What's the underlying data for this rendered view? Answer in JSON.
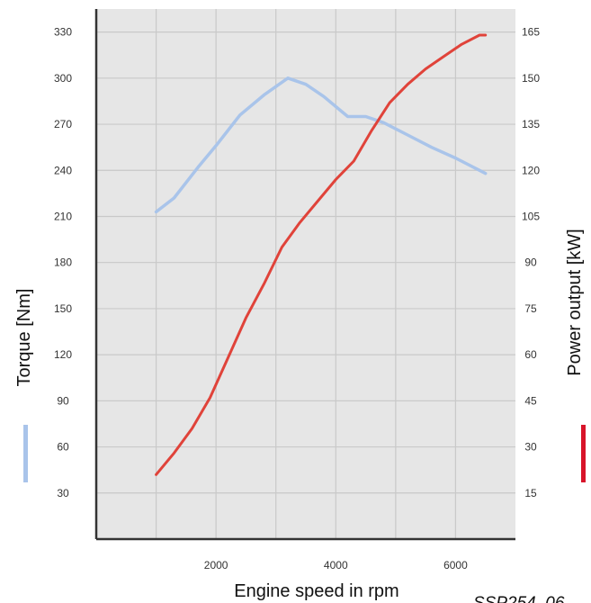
{
  "chart_data": {
    "type": "line",
    "title": "",
    "xlabel": "Engine speed in rpm",
    "ylabel_left": "Torque [Nm]",
    "ylabel_right": "Power output [kW]",
    "figure_code": "SSP254_06",
    "x_ticks": [
      2000,
      4000,
      6000
    ],
    "xlim": [
      0,
      7000
    ],
    "left_ticks": [
      30,
      60,
      90,
      120,
      150,
      180,
      210,
      240,
      270,
      300,
      330
    ],
    "right_ticks": [
      15,
      30,
      45,
      60,
      75,
      90,
      105,
      120,
      135,
      150,
      165
    ],
    "left_ylim": [
      0,
      345
    ],
    "right_ylim": [
      0,
      172.5
    ],
    "grid": true,
    "background": "#e6e6e6",
    "series": [
      {
        "axis": "left",
        "color": "#a9c4ea",
        "x": [
          1000,
          1300,
          1700,
          2000,
          2400,
          2800,
          3200,
          3500,
          3800,
          4200,
          4500,
          4800,
          5200,
          5600,
          6000,
          6500
        ],
        "values": [
          213,
          222,
          242,
          256,
          276,
          289,
          300,
          296,
          288,
          275,
          275,
          271,
          263,
          255,
          248,
          238
        ]
      },
      {
        "axis": "right",
        "color": "#e0433a",
        "x": [
          1000,
          1300,
          1600,
          1900,
          2200,
          2500,
          2800,
          3100,
          3400,
          3700,
          4000,
          4300,
          4600,
          4900,
          5200,
          5500,
          5800,
          6100,
          6400,
          6500
        ],
        "values": [
          21,
          28,
          36,
          46,
          59,
          72,
          83,
          95,
          103,
          110,
          117,
          123,
          133,
          142,
          148,
          153,
          157,
          161,
          164,
          164
        ]
      }
    ]
  }
}
